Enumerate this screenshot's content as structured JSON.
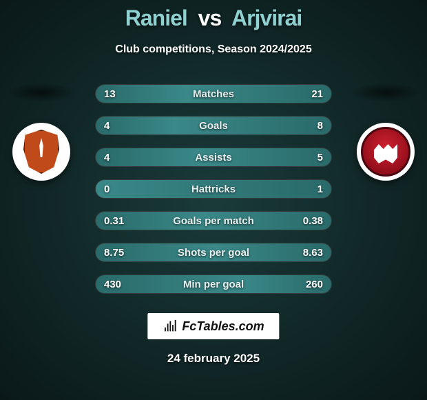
{
  "title": {
    "player1": "Raniel",
    "vs": "vs",
    "player2": "Arjvirai",
    "p1_color": "#8fd0d0",
    "p2_color": "#8fd0d0"
  },
  "subtitle": "Club competitions, Season 2024/2025",
  "crest_left": {
    "bg": "#ffffff",
    "shield": "#c04a1a"
  },
  "crest_right": {
    "bg": "#ffffff",
    "circle": "#a01020"
  },
  "stats": {
    "bar_bg": "#4a5555",
    "fill_color": "#3a8888",
    "text_color": "#e8f0f0",
    "rows": [
      {
        "label": "Matches",
        "left": "13",
        "right": "21",
        "left_pct": 38,
        "right_pct": 62
      },
      {
        "label": "Goals",
        "left": "4",
        "right": "8",
        "left_pct": 33,
        "right_pct": 67
      },
      {
        "label": "Assists",
        "left": "4",
        "right": "5",
        "left_pct": 44,
        "right_pct": 56
      },
      {
        "label": "Hattricks",
        "left": "0",
        "right": "1",
        "left_pct": 0,
        "right_pct": 100
      },
      {
        "label": "Goals per match",
        "left": "0.31",
        "right": "0.38",
        "left_pct": 45,
        "right_pct": 55
      },
      {
        "label": "Shots per goal",
        "left": "8.75",
        "right": "8.63",
        "left_pct": 50,
        "right_pct": 50
      },
      {
        "label": "Min per goal",
        "left": "430",
        "right": "260",
        "left_pct": 62,
        "right_pct": 38
      }
    ]
  },
  "brand": "FcTables.com",
  "date": "24 february 2025"
}
